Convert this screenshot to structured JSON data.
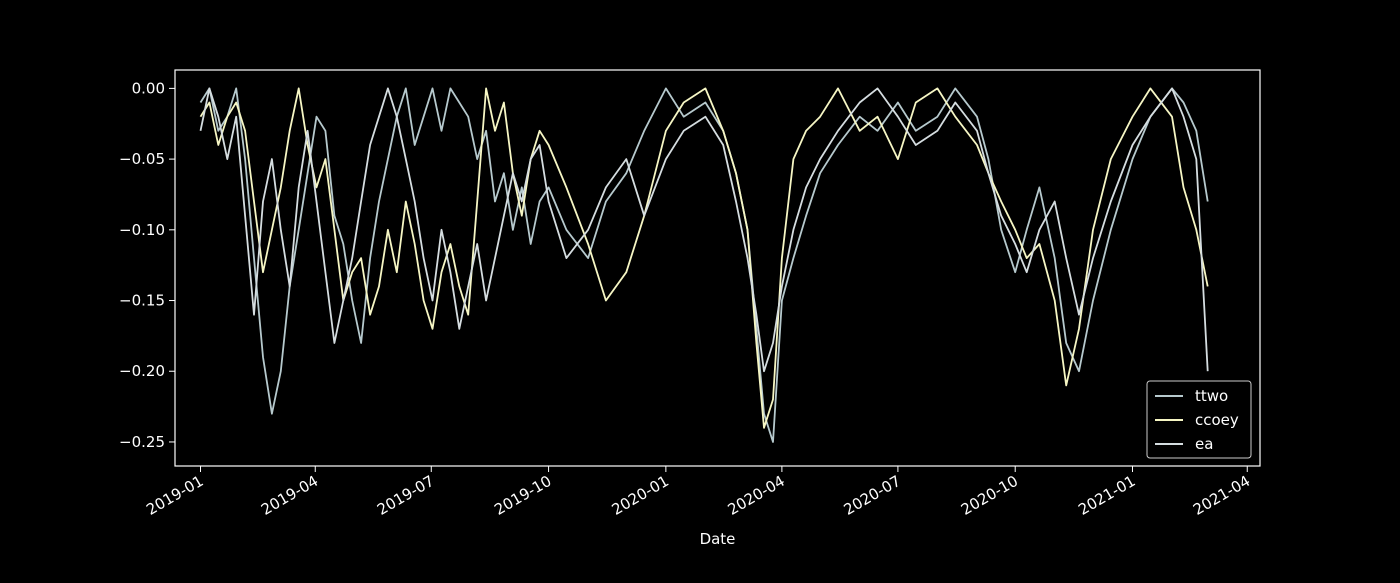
{
  "colors": {
    "background": "#000000",
    "axes": "#ffffff",
    "ttwo": "#b6c9cd",
    "ccoey": "#f6f6c4",
    "ea": "#d5dde0"
  },
  "chart_data": {
    "type": "line",
    "xlabel": "Date",
    "ylabel": "",
    "xlim": [
      "2018-12-12",
      "2021-04-11"
    ],
    "ylim": [
      -0.267,
      0.013
    ],
    "grid": false,
    "legend_position": "lower-right",
    "xticks": [
      "2019-01-01",
      "2019-04-01",
      "2019-07-01",
      "2019-10-01",
      "2020-01-01",
      "2020-04-01",
      "2020-07-01",
      "2020-10-01",
      "2021-01-01",
      "2021-04-01"
    ],
    "xtick_labels": [
      "2019-01",
      "2019-04",
      "2019-07",
      "2019-10",
      "2020-01",
      "2020-04",
      "2020-07",
      "2020-10",
      "2021-01",
      "2021-04"
    ],
    "yticks": [
      0.0,
      -0.05,
      -0.1,
      -0.15,
      -0.2,
      -0.25
    ],
    "ytick_labels": [
      "0.00",
      "−0.05",
      "−0.10",
      "−0.15",
      "−0.20",
      "−0.25"
    ],
    "series": [
      {
        "name": "ttwo",
        "key": "ttwo",
        "x": [
          "2019-01-01",
          "2019-01-08",
          "2019-01-15",
          "2019-01-22",
          "2019-01-29",
          "2019-02-05",
          "2019-02-12",
          "2019-02-19",
          "2019-02-26",
          "2019-03-05",
          "2019-03-12",
          "2019-03-19",
          "2019-03-26",
          "2019-04-02",
          "2019-04-09",
          "2019-04-16",
          "2019-04-23",
          "2019-04-30",
          "2019-05-07",
          "2019-05-14",
          "2019-05-21",
          "2019-05-28",
          "2019-06-04",
          "2019-06-11",
          "2019-06-18",
          "2019-06-25",
          "2019-07-02",
          "2019-07-09",
          "2019-07-16",
          "2019-07-23",
          "2019-07-30",
          "2019-08-06",
          "2019-08-13",
          "2019-08-20",
          "2019-08-27",
          "2019-09-03",
          "2019-09-10",
          "2019-09-17",
          "2019-09-24",
          "2019-10-01",
          "2019-10-15",
          "2019-11-01",
          "2019-11-15",
          "2019-12-01",
          "2019-12-15",
          "2020-01-01",
          "2020-01-15",
          "2020-02-01",
          "2020-02-15",
          "2020-02-25",
          "2020-03-05",
          "2020-03-12",
          "2020-03-18",
          "2020-03-25",
          "2020-04-01",
          "2020-04-10",
          "2020-04-20",
          "2020-05-01",
          "2020-05-15",
          "2020-06-01",
          "2020-06-15",
          "2020-07-01",
          "2020-07-15",
          "2020-08-01",
          "2020-08-15",
          "2020-09-01",
          "2020-09-10",
          "2020-09-20",
          "2020-10-01",
          "2020-10-10",
          "2020-10-20",
          "2020-11-01",
          "2020-11-10",
          "2020-11-20",
          "2020-12-01",
          "2020-12-15",
          "2021-01-01",
          "2021-01-15",
          "2021-02-01",
          "2021-02-10",
          "2021-02-20",
          "2021-03-01"
        ],
        "y": [
          -0.01,
          0.0,
          -0.03,
          -0.02,
          0.0,
          -0.05,
          -0.12,
          -0.19,
          -0.23,
          -0.2,
          -0.14,
          -0.1,
          -0.06,
          -0.02,
          -0.03,
          -0.09,
          -0.11,
          -0.15,
          -0.18,
          -0.12,
          -0.08,
          -0.05,
          -0.02,
          0.0,
          -0.04,
          -0.02,
          0.0,
          -0.03,
          0.0,
          -0.01,
          -0.02,
          -0.05,
          -0.03,
          -0.08,
          -0.06,
          -0.1,
          -0.07,
          -0.11,
          -0.08,
          -0.07,
          -0.1,
          -0.12,
          -0.08,
          -0.06,
          -0.03,
          0.0,
          -0.02,
          -0.01,
          -0.03,
          -0.06,
          -0.1,
          -0.17,
          -0.23,
          -0.25,
          -0.15,
          -0.12,
          -0.09,
          -0.06,
          -0.04,
          -0.02,
          -0.03,
          -0.01,
          -0.03,
          -0.02,
          0.0,
          -0.02,
          -0.05,
          -0.1,
          -0.13,
          -0.1,
          -0.07,
          -0.12,
          -0.18,
          -0.2,
          -0.15,
          -0.1,
          -0.05,
          -0.02,
          0.0,
          -0.01,
          -0.03,
          -0.08
        ]
      },
      {
        "name": "ccoey",
        "key": "ccoey",
        "x": [
          "2019-01-01",
          "2019-01-08",
          "2019-01-15",
          "2019-01-22",
          "2019-01-29",
          "2019-02-05",
          "2019-02-12",
          "2019-02-19",
          "2019-02-26",
          "2019-03-05",
          "2019-03-12",
          "2019-03-19",
          "2019-03-26",
          "2019-04-02",
          "2019-04-09",
          "2019-04-16",
          "2019-04-23",
          "2019-04-30",
          "2019-05-07",
          "2019-05-14",
          "2019-05-21",
          "2019-05-28",
          "2019-06-04",
          "2019-06-11",
          "2019-06-18",
          "2019-06-25",
          "2019-07-02",
          "2019-07-09",
          "2019-07-16",
          "2019-07-23",
          "2019-07-30",
          "2019-08-06",
          "2019-08-13",
          "2019-08-20",
          "2019-08-27",
          "2019-09-03",
          "2019-09-10",
          "2019-09-17",
          "2019-09-24",
          "2019-10-01",
          "2019-10-15",
          "2019-11-01",
          "2019-11-15",
          "2019-12-01",
          "2019-12-15",
          "2020-01-01",
          "2020-01-15",
          "2020-02-01",
          "2020-02-15",
          "2020-02-25",
          "2020-03-05",
          "2020-03-12",
          "2020-03-18",
          "2020-03-25",
          "2020-04-01",
          "2020-04-10",
          "2020-04-20",
          "2020-05-01",
          "2020-05-15",
          "2020-06-01",
          "2020-06-15",
          "2020-07-01",
          "2020-07-15",
          "2020-08-01",
          "2020-08-15",
          "2020-09-01",
          "2020-09-10",
          "2020-09-20",
          "2020-10-01",
          "2020-10-10",
          "2020-10-20",
          "2020-11-01",
          "2020-11-10",
          "2020-11-20",
          "2020-12-01",
          "2020-12-15",
          "2021-01-01",
          "2021-01-15",
          "2021-02-01",
          "2021-02-10",
          "2021-02-20",
          "2021-03-01"
        ],
        "y": [
          -0.02,
          -0.01,
          -0.04,
          -0.02,
          -0.01,
          -0.03,
          -0.08,
          -0.13,
          -0.1,
          -0.07,
          -0.03,
          0.0,
          -0.04,
          -0.07,
          -0.05,
          -0.1,
          -0.15,
          -0.13,
          -0.12,
          -0.16,
          -0.14,
          -0.1,
          -0.13,
          -0.08,
          -0.11,
          -0.15,
          -0.17,
          -0.13,
          -0.11,
          -0.14,
          -0.16,
          -0.08,
          0.0,
          -0.03,
          -0.01,
          -0.06,
          -0.09,
          -0.05,
          -0.03,
          -0.04,
          -0.07,
          -0.11,
          -0.15,
          -0.13,
          -0.09,
          -0.03,
          -0.01,
          0.0,
          -0.03,
          -0.06,
          -0.1,
          -0.18,
          -0.24,
          -0.22,
          -0.12,
          -0.05,
          -0.03,
          -0.02,
          0.0,
          -0.03,
          -0.02,
          -0.05,
          -0.01,
          0.0,
          -0.02,
          -0.04,
          -0.06,
          -0.08,
          -0.1,
          -0.12,
          -0.11,
          -0.15,
          -0.21,
          -0.17,
          -0.1,
          -0.05,
          -0.02,
          0.0,
          -0.02,
          -0.07,
          -0.1,
          -0.14
        ]
      },
      {
        "name": "ea",
        "key": "ea",
        "x": [
          "2019-01-01",
          "2019-01-08",
          "2019-01-15",
          "2019-01-22",
          "2019-01-29",
          "2019-02-05",
          "2019-02-12",
          "2019-02-19",
          "2019-02-26",
          "2019-03-05",
          "2019-03-12",
          "2019-03-19",
          "2019-03-26",
          "2019-04-02",
          "2019-04-09",
          "2019-04-16",
          "2019-04-23",
          "2019-04-30",
          "2019-05-07",
          "2019-05-14",
          "2019-05-21",
          "2019-05-28",
          "2019-06-04",
          "2019-06-11",
          "2019-06-18",
          "2019-06-25",
          "2019-07-02",
          "2019-07-09",
          "2019-07-16",
          "2019-07-23",
          "2019-07-30",
          "2019-08-06",
          "2019-08-13",
          "2019-08-20",
          "2019-08-27",
          "2019-09-03",
          "2019-09-10",
          "2019-09-17",
          "2019-09-24",
          "2019-10-01",
          "2019-10-15",
          "2019-11-01",
          "2019-11-15",
          "2019-12-01",
          "2019-12-15",
          "2020-01-01",
          "2020-01-15",
          "2020-02-01",
          "2020-02-15",
          "2020-02-25",
          "2020-03-05",
          "2020-03-12",
          "2020-03-18",
          "2020-03-25",
          "2020-04-01",
          "2020-04-10",
          "2020-04-20",
          "2020-05-01",
          "2020-05-15",
          "2020-06-01",
          "2020-06-15",
          "2020-07-01",
          "2020-07-15",
          "2020-08-01",
          "2020-08-15",
          "2020-09-01",
          "2020-09-10",
          "2020-09-20",
          "2020-10-01",
          "2020-10-10",
          "2020-10-20",
          "2020-11-01",
          "2020-11-10",
          "2020-11-20",
          "2020-12-01",
          "2020-12-15",
          "2021-01-01",
          "2021-01-15",
          "2021-02-01",
          "2021-02-10",
          "2021-02-20",
          "2021-03-01"
        ],
        "y": [
          -0.03,
          0.0,
          -0.02,
          -0.05,
          -0.02,
          -0.09,
          -0.16,
          -0.08,
          -0.05,
          -0.1,
          -0.14,
          -0.07,
          -0.03,
          -0.08,
          -0.13,
          -0.18,
          -0.15,
          -0.12,
          -0.08,
          -0.04,
          -0.02,
          0.0,
          -0.02,
          -0.05,
          -0.08,
          -0.12,
          -0.15,
          -0.1,
          -0.13,
          -0.17,
          -0.14,
          -0.11,
          -0.15,
          -0.12,
          -0.09,
          -0.06,
          -0.08,
          -0.05,
          -0.04,
          -0.08,
          -0.12,
          -0.1,
          -0.07,
          -0.05,
          -0.09,
          -0.05,
          -0.03,
          -0.02,
          -0.04,
          -0.08,
          -0.12,
          -0.16,
          -0.2,
          -0.18,
          -0.14,
          -0.1,
          -0.07,
          -0.05,
          -0.03,
          -0.01,
          0.0,
          -0.02,
          -0.04,
          -0.03,
          -0.01,
          -0.03,
          -0.06,
          -0.09,
          -0.11,
          -0.13,
          -0.1,
          -0.08,
          -0.12,
          -0.16,
          -0.12,
          -0.08,
          -0.04,
          -0.02,
          0.0,
          -0.02,
          -0.05,
          -0.2
        ]
      }
    ]
  }
}
